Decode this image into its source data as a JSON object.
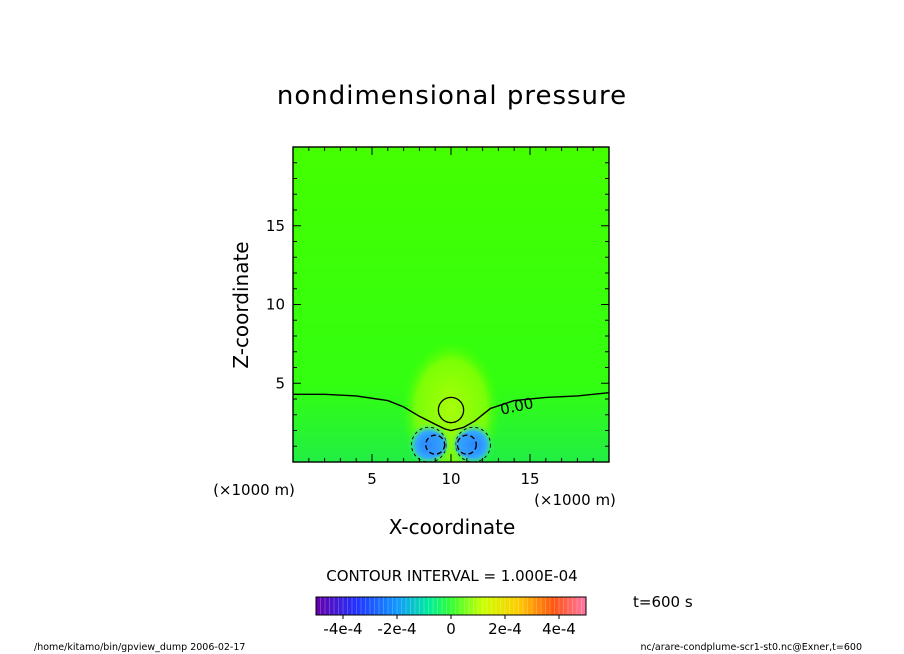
{
  "chart_data": {
    "type": "contour",
    "title": "nondimensional pressure",
    "xlabel": "X-coordinate",
    "ylabel": "Z-coordinate",
    "x_unit": "(×1000 m)",
    "z_unit": "(×1000 m)",
    "xlim": [
      0,
      20
    ],
    "ylim": [
      0,
      20
    ],
    "x_ticks": [
      5,
      10,
      15
    ],
    "y_ticks": [
      5,
      10,
      15
    ],
    "x_tick_labels": [
      "5",
      "10",
      "15"
    ],
    "y_tick_labels": [
      "5",
      "10",
      "15"
    ],
    "contour_label": "0.00",
    "zero_contour": [
      [
        0,
        4.3
      ],
      [
        2,
        4.3
      ],
      [
        4,
        4.2
      ],
      [
        6,
        3.9
      ],
      [
        7,
        3.5
      ],
      [
        8,
        2.9
      ],
      [
        9,
        2.4
      ],
      [
        9.6,
        2.1
      ],
      [
        10,
        2.0
      ],
      [
        10.8,
        2.2
      ],
      [
        11.5,
        2.6
      ],
      [
        12.5,
        3.4
      ],
      [
        14,
        3.9
      ],
      [
        16,
        4.1
      ],
      [
        18,
        4.2
      ],
      [
        20,
        4.4
      ]
    ],
    "features": [
      {
        "kind": "positive-circle",
        "x": 10.0,
        "z": 3.3,
        "r": 0.8
      },
      {
        "kind": "negative-circle",
        "x": 9.0,
        "z": 1.1,
        "r": 0.6
      },
      {
        "kind": "negative-circle",
        "x": 11.0,
        "z": 1.1,
        "r": 0.6
      },
      {
        "kind": "negative-outer",
        "x": 8.6,
        "z": 1.1,
        "r": 1.1
      },
      {
        "kind": "negative-outer",
        "x": 11.4,
        "z": 1.1,
        "r": 1.1
      }
    ],
    "contour_interval_text": "CONTOUR INTERVAL = 1.000E-04",
    "colorbar": {
      "min": -0.0005,
      "max": 0.0005,
      "tick_values": [
        -0.0004,
        -0.0002,
        0,
        0.0002,
        0.0004
      ],
      "tick_labels": [
        "-4e-4",
        "-2e-4",
        "0",
        "2e-4",
        "4e-4"
      ]
    },
    "time_label": "t=600 s",
    "footer_left": "/home/kitamo/bin/gpview_dump  2006-02-17",
    "footer_right": "nc/arare-condplume-scr1-st0.nc@Exner,t=600"
  },
  "colors": {
    "field_base": "#33ff00",
    "field_lower": "#22ee33",
    "positive": "#ccff00",
    "negative": "#3399ff"
  }
}
